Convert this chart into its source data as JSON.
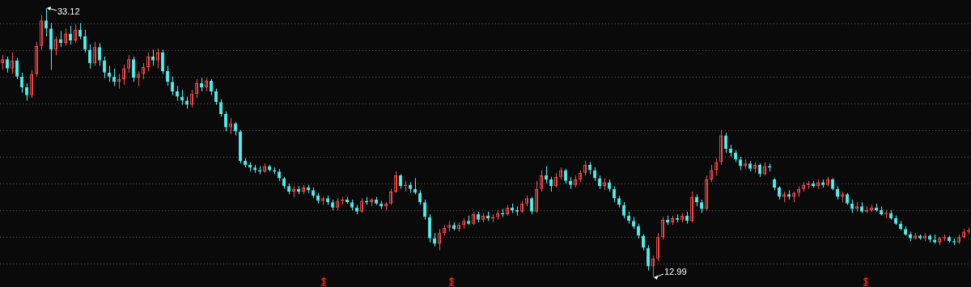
{
  "chart_data": {
    "type": "candlestick",
    "categories": [
      null,
      null,
      null,
      null,
      null,
      null,
      null,
      null,
      null,
      null,
      null,
      null,
      null,
      null,
      null,
      null,
      null,
      null,
      null,
      null,
      null,
      null,
      null,
      null,
      null,
      null,
      null,
      null,
      null,
      null,
      null,
      null,
      null,
      null,
      null,
      null,
      null,
      null,
      null,
      null,
      null,
      null,
      null,
      null,
      null,
      null,
      null,
      null,
      null,
      null,
      null,
      null,
      null,
      null,
      null,
      null,
      null,
      null,
      null,
      null,
      null,
      null,
      null,
      null,
      null,
      null,
      null,
      null,
      null,
      null,
      null,
      null,
      null,
      null,
      null,
      null,
      null,
      null,
      null,
      null,
      null,
      null,
      null,
      null,
      null,
      null,
      null,
      null,
      null,
      null,
      null,
      null,
      null,
      null,
      null,
      null,
      null,
      null,
      null,
      null,
      null,
      null,
      null,
      null,
      null,
      null,
      null,
      null,
      null,
      null,
      null,
      null,
      null,
      null,
      null,
      null,
      null,
      null,
      null,
      null,
      null,
      null,
      null,
      null,
      null,
      null,
      null,
      null,
      null,
      null,
      null,
      null,
      null,
      null,
      null,
      null,
      null,
      null,
      null,
      null,
      null,
      null,
      null,
      null,
      null,
      null,
      null,
      null,
      null,
      null,
      null,
      null,
      null,
      null,
      null,
      null,
      null,
      null,
      null,
      null,
      null,
      null,
      null,
      null,
      null,
      null,
      null,
      null,
      null,
      null,
      null,
      null,
      null,
      null,
      null,
      null,
      null,
      null,
      null,
      null,
      null,
      null,
      null,
      null,
      null,
      null,
      null,
      null,
      null,
      null,
      null,
      null,
      null,
      null,
      null,
      null,
      null,
      null,
      null,
      null
    ],
    "ohlc": [
      [
        29.0,
        29.6,
        28.5,
        29.3
      ],
      [
        29.3,
        29.5,
        28.3,
        28.6
      ],
      [
        28.6,
        29.8,
        28.2,
        29.2
      ],
      [
        29.2,
        29.4,
        27.8,
        28.0
      ],
      [
        28.0,
        28.3,
        26.8,
        27.2
      ],
      [
        27.2,
        27.5,
        26.2,
        26.6
      ],
      [
        26.6,
        28.5,
        26.4,
        28.2
      ],
      [
        28.2,
        30.6,
        28.0,
        30.3
      ],
      [
        30.3,
        32.6,
        30.0,
        32.2
      ],
      [
        32.2,
        33.12,
        31.0,
        31.6
      ],
      [
        31.6,
        32.0,
        28.5,
        30.0
      ],
      [
        30.0,
        31.0,
        29.6,
        30.8
      ],
      [
        30.8,
        31.4,
        30.2,
        30.5
      ],
      [
        30.5,
        31.6,
        30.3,
        31.2
      ],
      [
        31.2,
        31.8,
        30.4,
        30.7
      ],
      [
        30.7,
        31.9,
        30.5,
        31.5
      ],
      [
        31.5,
        32.0,
        30.8,
        31.0
      ],
      [
        31.0,
        31.5,
        29.8,
        30.0
      ],
      [
        30.0,
        30.4,
        28.6,
        29.0
      ],
      [
        29.0,
        30.6,
        28.8,
        30.2
      ],
      [
        30.2,
        30.5,
        28.8,
        29.2
      ],
      [
        29.2,
        29.5,
        27.9,
        28.3
      ],
      [
        28.3,
        28.8,
        27.6,
        28.0
      ],
      [
        28.0,
        28.6,
        27.3,
        27.6
      ],
      [
        27.6,
        28.2,
        27.1,
        27.8
      ],
      [
        27.8,
        28.9,
        27.4,
        28.6
      ],
      [
        28.6,
        29.6,
        28.3,
        29.3
      ],
      [
        29.3,
        29.5,
        27.6,
        27.9
      ],
      [
        27.9,
        28.4,
        27.3,
        28.2
      ],
      [
        28.2,
        29.0,
        27.8,
        28.7
      ],
      [
        28.7,
        29.8,
        28.4,
        29.5
      ],
      [
        29.5,
        30.0,
        28.8,
        29.2
      ],
      [
        29.2,
        30.1,
        28.6,
        29.8
      ],
      [
        29.8,
        30.0,
        28.2,
        28.4
      ],
      [
        28.4,
        28.8,
        27.3,
        27.6
      ],
      [
        27.6,
        28.0,
        26.6,
        26.9
      ],
      [
        26.9,
        27.3,
        26.2,
        26.5
      ],
      [
        26.5,
        27.0,
        25.9,
        26.2
      ],
      [
        26.2,
        26.5,
        25.6,
        25.9
      ],
      [
        25.9,
        27.0,
        25.7,
        26.7
      ],
      [
        26.7,
        27.8,
        26.4,
        27.5
      ],
      [
        27.5,
        27.9,
        26.9,
        27.2
      ],
      [
        27.2,
        27.9,
        26.9,
        27.7
      ],
      [
        27.7,
        27.8,
        26.6,
        26.9
      ],
      [
        26.9,
        27.1,
        25.9,
        26.1
      ],
      [
        26.1,
        26.3,
        25.0,
        25.2
      ],
      [
        25.2,
        25.4,
        23.9,
        24.2
      ],
      [
        24.2,
        24.9,
        23.7,
        24.5
      ],
      [
        24.5,
        24.6,
        23.6,
        23.9
      ],
      [
        23.9,
        24.0,
        21.5,
        21.7
      ],
      [
        21.7,
        21.9,
        21.2,
        21.4
      ],
      [
        21.4,
        21.6,
        20.9,
        21.2
      ],
      [
        21.2,
        21.4,
        20.8,
        21.0
      ],
      [
        21.0,
        21.3,
        20.7,
        20.9
      ],
      [
        20.9,
        21.5,
        20.8,
        21.3
      ],
      [
        21.3,
        21.4,
        20.9,
        21.0
      ],
      [
        21.0,
        21.2,
        20.7,
        20.9
      ],
      [
        20.9,
        21.1,
        20.2,
        20.4
      ],
      [
        20.4,
        20.5,
        19.6,
        19.8
      ],
      [
        19.8,
        20.0,
        19.2,
        19.4
      ],
      [
        19.4,
        19.8,
        19.0,
        19.6
      ],
      [
        19.6,
        19.8,
        19.2,
        19.4
      ],
      [
        19.4,
        19.9,
        19.2,
        19.7
      ],
      [
        19.7,
        19.9,
        19.3,
        19.5
      ],
      [
        19.5,
        19.7,
        18.9,
        19.1
      ],
      [
        19.1,
        19.3,
        18.5,
        18.7
      ],
      [
        18.7,
        19.0,
        18.4,
        18.9
      ],
      [
        18.9,
        19.1,
        18.4,
        18.6
      ],
      [
        18.6,
        18.8,
        18.0,
        18.2
      ],
      [
        18.2,
        18.9,
        18.0,
        18.7
      ],
      [
        18.7,
        19.0,
        18.4,
        18.8
      ],
      [
        18.8,
        19.0,
        18.5,
        18.6
      ],
      [
        18.6,
        18.8,
        18.0,
        18.2
      ],
      [
        18.2,
        18.4,
        17.7,
        17.9
      ],
      [
        17.9,
        18.9,
        17.8,
        18.7
      ],
      [
        18.7,
        19.0,
        18.4,
        18.6
      ],
      [
        18.6,
        18.9,
        18.3,
        18.8
      ],
      [
        18.8,
        19.0,
        18.4,
        18.5
      ],
      [
        18.5,
        18.7,
        18.1,
        18.3
      ],
      [
        18.3,
        18.6,
        18.0,
        18.5
      ],
      [
        18.5,
        19.6,
        18.4,
        19.4
      ],
      [
        19.4,
        20.9,
        19.3,
        20.6
      ],
      [
        20.6,
        20.7,
        19.6,
        19.8
      ],
      [
        19.8,
        20.2,
        19.4,
        19.9
      ],
      [
        19.9,
        20.1,
        19.3,
        19.6
      ],
      [
        19.6,
        20.4,
        19.2,
        19.3
      ],
      [
        19.3,
        19.5,
        18.4,
        18.6
      ],
      [
        18.6,
        18.8,
        17.3,
        17.5
      ],
      [
        17.5,
        17.7,
        15.6,
        15.9
      ],
      [
        15.9,
        16.3,
        15.3,
        15.5
      ],
      [
        15.5,
        16.6,
        15.0,
        16.3
      ],
      [
        16.3,
        16.9,
        16.1,
        16.7
      ],
      [
        16.7,
        17.2,
        16.4,
        16.9
      ],
      [
        16.9,
        17.1,
        16.5,
        16.6
      ],
      [
        16.6,
        17.1,
        16.4,
        16.9
      ],
      [
        16.9,
        17.4,
        16.6,
        17.2
      ],
      [
        17.2,
        17.6,
        16.9,
        17.0
      ],
      [
        17.0,
        17.9,
        16.9,
        17.7
      ],
      [
        17.7,
        17.9,
        17.1,
        17.3
      ],
      [
        17.3,
        17.8,
        17.1,
        17.6
      ],
      [
        17.6,
        17.9,
        17.2,
        17.4
      ],
      [
        17.4,
        17.7,
        17.1,
        17.5
      ],
      [
        17.5,
        18.0,
        17.3,
        17.8
      ],
      [
        17.8,
        18.1,
        17.5,
        17.7
      ],
      [
        17.7,
        18.4,
        17.6,
        18.2
      ],
      [
        18.2,
        18.5,
        17.8,
        18.0
      ],
      [
        18.0,
        18.3,
        17.6,
        17.9
      ],
      [
        17.9,
        18.7,
        17.8,
        18.5
      ],
      [
        18.5,
        19.1,
        18.3,
        18.9
      ],
      [
        18.9,
        19.0,
        17.7,
        17.9
      ],
      [
        17.9,
        20.2,
        17.8,
        19.6
      ],
      [
        19.6,
        21.0,
        19.4,
        20.6
      ],
      [
        20.6,
        21.3,
        20.0,
        20.3
      ],
      [
        20.3,
        20.5,
        19.4,
        19.8
      ],
      [
        19.8,
        20.8,
        19.7,
        20.5
      ],
      [
        20.5,
        21.2,
        20.3,
        21.0
      ],
      [
        21.0,
        21.1,
        20.0,
        20.2
      ],
      [
        20.2,
        20.5,
        19.6,
        19.9
      ],
      [
        19.9,
        20.6,
        19.7,
        20.3
      ],
      [
        20.3,
        21.0,
        20.1,
        20.8
      ],
      [
        20.8,
        21.7,
        20.6,
        21.4
      ],
      [
        21.4,
        21.6,
        20.7,
        21.0
      ],
      [
        21.0,
        21.2,
        20.2,
        20.4
      ],
      [
        20.4,
        20.6,
        19.6,
        19.8
      ],
      [
        19.8,
        20.4,
        19.5,
        20.1
      ],
      [
        20.1,
        20.3,
        19.4,
        19.6
      ],
      [
        19.6,
        19.8,
        18.6,
        18.9
      ],
      [
        18.9,
        19.1,
        18.2,
        18.4
      ],
      [
        18.4,
        18.6,
        17.4,
        17.6
      ],
      [
        17.6,
        17.9,
        17.0,
        17.2
      ],
      [
        17.2,
        17.5,
        16.6,
        16.8
      ],
      [
        16.8,
        17.0,
        15.9,
        16.1
      ],
      [
        16.1,
        16.2,
        15.0,
        15.2
      ],
      [
        15.2,
        15.4,
        13.5,
        13.8
      ],
      [
        13.8,
        14.6,
        12.99,
        14.4
      ],
      [
        14.4,
        16.3,
        14.2,
        16.0
      ],
      [
        16.0,
        17.5,
        15.8,
        17.3
      ],
      [
        17.3,
        17.6,
        16.9,
        17.1
      ],
      [
        17.1,
        17.6,
        16.9,
        17.4
      ],
      [
        17.4,
        17.7,
        17.1,
        17.3
      ],
      [
        17.3,
        17.8,
        17.1,
        17.6
      ],
      [
        17.6,
        17.9,
        17.0,
        17.2
      ],
      [
        17.2,
        19.4,
        17.1,
        19.0
      ],
      [
        19.0,
        19.2,
        18.3,
        18.6
      ],
      [
        18.6,
        18.8,
        17.8,
        18.1
      ],
      [
        18.1,
        20.6,
        18.0,
        20.3
      ],
      [
        20.3,
        21.4,
        20.1,
        21.0
      ],
      [
        21.0,
        21.9,
        20.6,
        21.6
      ],
      [
        21.6,
        24.0,
        21.4,
        23.6
      ],
      [
        23.6,
        23.8,
        22.3,
        22.6
      ],
      [
        22.6,
        22.9,
        22.0,
        22.3
      ],
      [
        22.3,
        22.5,
        21.6,
        21.8
      ],
      [
        21.8,
        22.0,
        21.0,
        21.3
      ],
      [
        21.3,
        21.8,
        21.1,
        21.5
      ],
      [
        21.5,
        21.7,
        20.9,
        21.1
      ],
      [
        21.1,
        21.6,
        20.8,
        21.4
      ],
      [
        21.4,
        21.5,
        20.5,
        20.7
      ],
      [
        20.7,
        21.6,
        20.6,
        21.3
      ],
      [
        21.3,
        21.5,
        20.9,
        21.2
      ],
      [
        20.3,
        20.4,
        19.5,
        19.7
      ],
      [
        19.7,
        19.8,
        18.8,
        19.0
      ],
      [
        19.0,
        19.4,
        18.6,
        19.2
      ],
      [
        19.2,
        19.5,
        18.8,
        19.0
      ],
      [
        19.0,
        19.4,
        18.6,
        19.3
      ],
      [
        19.3,
        19.8,
        19.0,
        19.6
      ],
      [
        19.6,
        20.1,
        19.4,
        19.9
      ],
      [
        19.9,
        20.2,
        19.6,
        20.0
      ],
      [
        20.0,
        20.2,
        19.7,
        19.8
      ],
      [
        19.8,
        20.3,
        19.6,
        20.1
      ],
      [
        20.1,
        20.3,
        19.7,
        19.9
      ],
      [
        19.9,
        20.5,
        19.8,
        20.3
      ],
      [
        20.3,
        20.4,
        19.5,
        19.6
      ],
      [
        19.6,
        19.8,
        18.8,
        19.0
      ],
      [
        19.0,
        19.4,
        18.6,
        19.2
      ],
      [
        19.2,
        19.3,
        18.4,
        18.5
      ],
      [
        18.5,
        18.8,
        17.8,
        18.1
      ],
      [
        18.1,
        18.6,
        17.9,
        18.3
      ],
      [
        18.3,
        18.6,
        17.8,
        17.9
      ],
      [
        17.9,
        18.3,
        17.8,
        18.0
      ],
      [
        18.0,
        18.4,
        17.9,
        18.2
      ],
      [
        18.2,
        18.5,
        17.9,
        18.0
      ],
      [
        18.0,
        18.3,
        17.6,
        17.7
      ],
      [
        17.7,
        18.0,
        17.4,
        17.8
      ],
      [
        17.8,
        18.0,
        17.3,
        17.4
      ],
      [
        17.4,
        17.6,
        16.9,
        17.0
      ],
      [
        17.0,
        17.2,
        16.5,
        16.6
      ],
      [
        16.6,
        16.8,
        16.1,
        16.2
      ],
      [
        16.2,
        16.4,
        15.7,
        15.9
      ],
      [
        15.9,
        16.3,
        15.8,
        16.1
      ],
      [
        16.1,
        16.2,
        15.8,
        15.9
      ],
      [
        15.9,
        16.3,
        15.7,
        16.1
      ],
      [
        16.1,
        16.2,
        15.6,
        15.8
      ],
      [
        15.8,
        16.2,
        15.5,
        15.6
      ],
      [
        15.6,
        16.0,
        15.4,
        15.9
      ],
      [
        15.9,
        16.2,
        15.7,
        16.0
      ],
      [
        16.0,
        16.1,
        15.6,
        15.7
      ],
      [
        15.7,
        15.9,
        15.4,
        15.6
      ],
      [
        15.6,
        16.2,
        15.5,
        16.0
      ],
      [
        16.0,
        16.6,
        15.9,
        16.4
      ],
      [
        16.4,
        16.7,
        16.2,
        16.5
      ]
    ],
    "yticks": [
      {
        "value": 14,
        "label": null
      },
      {
        "value": 16,
        "label": null
      },
      {
        "value": 18,
        "label": null
      },
      {
        "value": 20,
        "label": null
      },
      {
        "value": 22,
        "label": null
      },
      {
        "value": 24,
        "label": null
      },
      {
        "value": 26,
        "label": null
      },
      {
        "value": 28,
        "label": null
      },
      {
        "value": 30,
        "label": null
      },
      {
        "value": 32,
        "label": null
      }
    ],
    "grid": "y",
    "legend": false,
    "annotations": [
      "33.12",
      "12.99"
    ]
  }
}
